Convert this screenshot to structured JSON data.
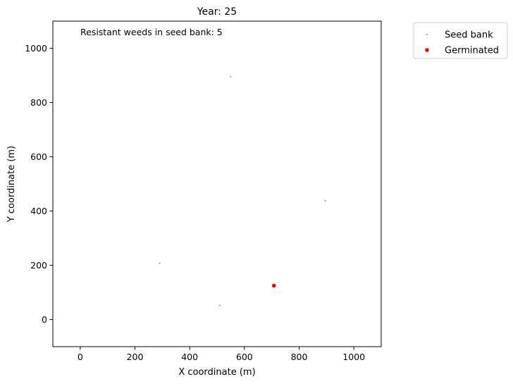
{
  "chart_data": {
    "type": "scatter",
    "title": "Year: 25",
    "xlabel": "X coordinate (m)",
    "ylabel": "Y coordinate (m)",
    "xlim": [
      -100,
      1100
    ],
    "ylim": [
      -100,
      1100
    ],
    "xticks": [
      0,
      200,
      400,
      600,
      800,
      1000
    ],
    "yticks": [
      0,
      200,
      400,
      600,
      800,
      1000
    ],
    "grid": false,
    "annotation": "Resistant weeds in seed bank: 5",
    "legend_position": "outside-top-right",
    "series": [
      {
        "name": "Seed bank",
        "color": "#999999",
        "marker": "dot-small",
        "points": [
          {
            "x": 550,
            "y": 895
          },
          {
            "x": 895,
            "y": 438
          },
          {
            "x": 290,
            "y": 207
          },
          {
            "x": 510,
            "y": 52
          },
          {
            "x": 708,
            "y": 125
          }
        ]
      },
      {
        "name": "Germinated",
        "color": "#ff0000",
        "marker": "dot",
        "points": [
          {
            "x": 708,
            "y": 125
          }
        ]
      }
    ]
  }
}
